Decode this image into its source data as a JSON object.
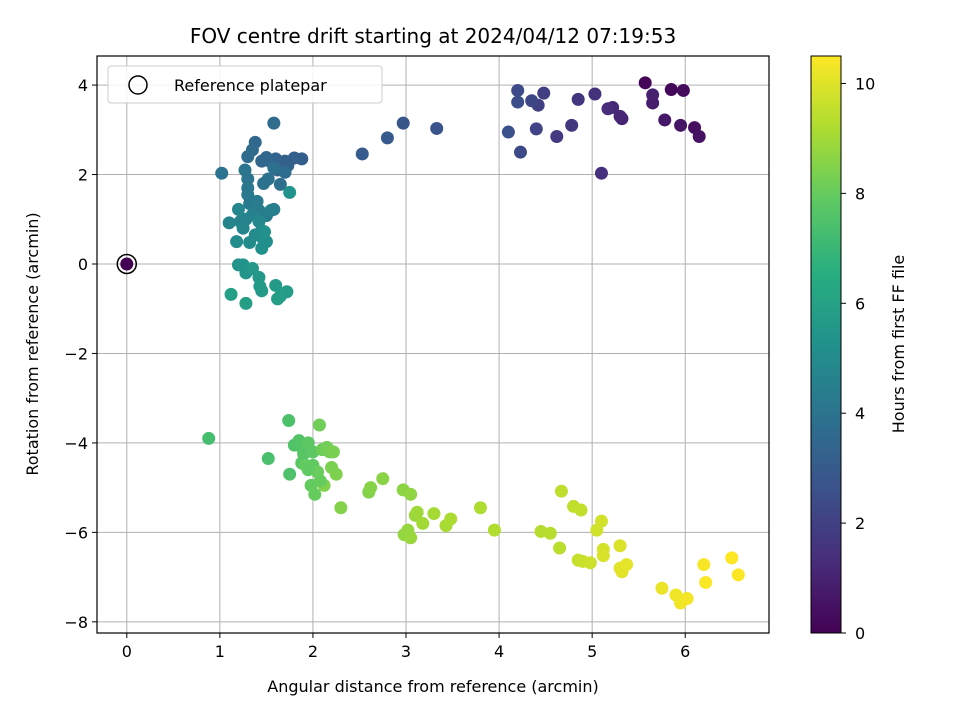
{
  "chart_data": {
    "type": "scatter",
    "title": "FOV centre drift starting at 2024/04/12 07:19:53",
    "xlabel": "Angular distance from reference (arcmin)",
    "ylabel": "Rotation from reference (arcmin)",
    "xlim": [
      -0.32,
      6.9
    ],
    "ylim": [
      -8.25,
      4.65
    ],
    "xticks": [
      0,
      1,
      2,
      3,
      4,
      5,
      6
    ],
    "yticks": [
      -8,
      -6,
      -4,
      -2,
      0,
      2,
      4
    ],
    "xtick_labels": [
      "0",
      "1",
      "2",
      "3",
      "4",
      "5",
      "6"
    ],
    "ytick_labels": [
      "−8",
      "−6",
      "−4",
      "−2",
      "0",
      "2",
      "4"
    ],
    "grid": true,
    "legend": {
      "placement": "top-left",
      "entries": [
        "Reference platepar"
      ]
    },
    "reference_point": {
      "x": 0,
      "y": 0,
      "hours": 0
    },
    "colorbar": {
      "label": "Hours from first FF file",
      "colormap": "viridis",
      "range": [
        0,
        10.5
      ],
      "ticks": [
        0,
        2,
        4,
        6,
        8,
        10
      ],
      "tick_labels": [
        "0",
        "2",
        "4",
        "6",
        "8",
        "10"
      ]
    },
    "points": [
      [
        5.57,
        4.05,
        0.1
      ],
      [
        5.85,
        3.9,
        0.2
      ],
      [
        5.98,
        3.88,
        0.3
      ],
      [
        6.1,
        3.05,
        0.4
      ],
      [
        6.15,
        2.85,
        0.5
      ],
      [
        5.95,
        3.1,
        0.6
      ],
      [
        5.78,
        3.22,
        0.7
      ],
      [
        5.65,
        3.6,
        0.8
      ],
      [
        5.65,
        3.78,
        0.9
      ],
      [
        5.32,
        3.25,
        1.0
      ],
      [
        5.3,
        3.3,
        1.1
      ],
      [
        5.22,
        3.5,
        1.2
      ],
      [
        5.17,
        3.47,
        1.3
      ],
      [
        5.1,
        2.03,
        1.4
      ],
      [
        5.03,
        3.8,
        1.5
      ],
      [
        4.85,
        3.68,
        1.6
      ],
      [
        4.78,
        3.1,
        1.7
      ],
      [
        4.62,
        2.85,
        1.8
      ],
      [
        4.48,
        3.82,
        1.9
      ],
      [
        4.42,
        3.55,
        2.0
      ],
      [
        4.4,
        3.02,
        2.1
      ],
      [
        4.35,
        3.65,
        2.2
      ],
      [
        4.23,
        2.5,
        2.3
      ],
      [
        4.2,
        3.88,
        2.4
      ],
      [
        4.2,
        3.62,
        2.5
      ],
      [
        4.1,
        2.95,
        2.6
      ],
      [
        3.33,
        3.03,
        2.7
      ],
      [
        2.97,
        3.15,
        2.8
      ],
      [
        2.8,
        2.82,
        2.9
      ],
      [
        2.53,
        2.46,
        3.0
      ],
      [
        1.88,
        2.35,
        3.1
      ],
      [
        1.8,
        2.37,
        3.15
      ],
      [
        1.73,
        2.2,
        3.2
      ],
      [
        1.7,
        2.3,
        3.25
      ],
      [
        1.62,
        2.1,
        3.3
      ],
      [
        1.6,
        2.35,
        3.35
      ],
      [
        1.55,
        2.28,
        3.4
      ],
      [
        1.5,
        2.38,
        3.45
      ],
      [
        1.45,
        2.3,
        3.5
      ],
      [
        1.38,
        2.72,
        3.55
      ],
      [
        1.35,
        2.55,
        3.6
      ],
      [
        1.3,
        2.4,
        3.65
      ],
      [
        1.58,
        3.15,
        3.7
      ],
      [
        1.7,
        2.05,
        3.75
      ],
      [
        1.65,
        1.78,
        3.8
      ],
      [
        1.58,
        2.15,
        3.85
      ],
      [
        1.52,
        1.9,
        3.9
      ],
      [
        1.47,
        1.8,
        3.95
      ],
      [
        1.02,
        2.03,
        4.0
      ],
      [
        1.27,
        2.1,
        4.05
      ],
      [
        1.3,
        1.9,
        4.1
      ],
      [
        1.3,
        1.7,
        4.15
      ],
      [
        1.3,
        1.55,
        4.2
      ],
      [
        1.32,
        1.35,
        4.25
      ],
      [
        1.4,
        1.4,
        4.3
      ],
      [
        1.42,
        1.2,
        4.35
      ],
      [
        1.5,
        1.08,
        4.4
      ],
      [
        1.58,
        1.22,
        4.45
      ],
      [
        1.55,
        1.2,
        4.5
      ],
      [
        1.35,
        1.1,
        4.55
      ],
      [
        1.28,
        1.0,
        4.6
      ],
      [
        1.22,
        0.95,
        4.65
      ],
      [
        1.1,
        0.92,
        4.7
      ],
      [
        1.25,
        0.8,
        4.75
      ],
      [
        1.2,
        1.22,
        4.8
      ],
      [
        1.42,
        0.95,
        4.85
      ],
      [
        1.45,
        0.75,
        4.9
      ],
      [
        1.38,
        0.65,
        4.95
      ],
      [
        1.32,
        0.48,
        5.0
      ],
      [
        1.18,
        0.5,
        5.05
      ],
      [
        1.45,
        0.6,
        5.1
      ],
      [
        1.5,
        0.5,
        5.15
      ],
      [
        1.45,
        0.35,
        5.2
      ],
      [
        1.48,
        0.72,
        5.25
      ],
      [
        1.75,
        1.6,
        5.3
      ],
      [
        1.2,
        -0.02,
        5.35
      ],
      [
        1.25,
        -0.02,
        5.4
      ],
      [
        1.28,
        -0.2,
        5.45
      ],
      [
        1.35,
        -0.1,
        5.5
      ],
      [
        1.42,
        -0.3,
        5.55
      ],
      [
        1.43,
        -0.5,
        5.6
      ],
      [
        1.45,
        -0.6,
        5.65
      ],
      [
        1.6,
        -0.48,
        5.7
      ],
      [
        1.72,
        -0.62,
        5.75
      ],
      [
        1.65,
        -0.72,
        5.8
      ],
      [
        1.62,
        -0.78,
        5.85
      ],
      [
        1.28,
        -0.88,
        5.9
      ],
      [
        1.12,
        -0.68,
        5.95
      ],
      [
        0.88,
        -3.9,
        7.3
      ],
      [
        1.52,
        -4.35,
        7.4
      ],
      [
        1.74,
        -3.5,
        7.45
      ],
      [
        1.75,
        -4.7,
        7.5
      ],
      [
        1.8,
        -4.05,
        7.55
      ],
      [
        1.85,
        -3.95,
        7.6
      ],
      [
        1.88,
        -4.1,
        7.65
      ],
      [
        1.9,
        -4.25,
        7.7
      ],
      [
        1.88,
        -4.45,
        7.75
      ],
      [
        1.95,
        -4.0,
        7.8
      ],
      [
        2.0,
        -4.2,
        7.85
      ],
      [
        2.0,
        -4.5,
        7.9
      ],
      [
        1.98,
        -4.95,
        7.95
      ],
      [
        2.02,
        -5.15,
        8.0
      ],
      [
        2.05,
        -4.65,
        8.05
      ],
      [
        2.1,
        -4.15,
        8.1
      ],
      [
        2.07,
        -3.6,
        8.15
      ],
      [
        2.15,
        -4.1,
        8.2
      ],
      [
        2.18,
        -4.2,
        8.25
      ],
      [
        2.22,
        -4.2,
        8.3
      ],
      [
        2.2,
        -4.55,
        8.35
      ],
      [
        2.25,
        -4.7,
        8.4
      ],
      [
        2.12,
        -4.95,
        8.45
      ],
      [
        2.3,
        -5.45,
        8.5
      ],
      [
        1.95,
        -4.6,
        7.9
      ],
      [
        1.92,
        -4.5,
        7.92
      ],
      [
        2.08,
        -4.85,
        8.0
      ],
      [
        2.6,
        -5.1,
        8.5
      ],
      [
        2.62,
        -5.0,
        8.55
      ],
      [
        2.75,
        -4.8,
        8.6
      ],
      [
        2.97,
        -5.05,
        8.65
      ],
      [
        3.05,
        -5.15,
        8.7
      ],
      [
        2.98,
        -6.05,
        8.75
      ],
      [
        3.02,
        -5.95,
        8.8
      ],
      [
        3.05,
        -6.12,
        8.85
      ],
      [
        3.1,
        -5.62,
        8.9
      ],
      [
        3.12,
        -5.55,
        8.95
      ],
      [
        3.18,
        -5.8,
        9.0
      ],
      [
        3.3,
        -5.58,
        9.05
      ],
      [
        3.43,
        -5.85,
        9.1
      ],
      [
        3.48,
        -5.7,
        9.15
      ],
      [
        3.8,
        -5.45,
        9.2
      ],
      [
        3.95,
        -5.95,
        9.25
      ],
      [
        4.45,
        -5.98,
        9.3
      ],
      [
        4.55,
        -6.02,
        9.35
      ],
      [
        4.65,
        -6.35,
        9.4
      ],
      [
        4.67,
        -5.08,
        9.45
      ],
      [
        4.8,
        -5.42,
        9.5
      ],
      [
        4.88,
        -5.5,
        9.55
      ],
      [
        4.85,
        -6.62,
        9.6
      ],
      [
        4.9,
        -6.65,
        9.65
      ],
      [
        4.98,
        -6.68,
        9.7
      ],
      [
        5.05,
        -5.95,
        9.75
      ],
      [
        5.1,
        -5.75,
        9.8
      ],
      [
        5.12,
        -6.38,
        9.85
      ],
      [
        5.12,
        -6.52,
        9.9
      ],
      [
        5.3,
        -6.3,
        9.95
      ],
      [
        5.3,
        -6.8,
        10.0
      ],
      [
        5.32,
        -6.88,
        10.05
      ],
      [
        5.37,
        -6.72,
        10.1
      ],
      [
        5.75,
        -7.25,
        10.2
      ],
      [
        5.9,
        -7.4,
        10.25
      ],
      [
        5.95,
        -7.58,
        10.3
      ],
      [
        6.02,
        -7.48,
        10.35
      ],
      [
        6.2,
        -6.72,
        10.4
      ],
      [
        6.22,
        -7.12,
        10.45
      ],
      [
        6.5,
        -6.57,
        10.5
      ],
      [
        6.57,
        -6.95,
        10.5
      ]
    ]
  }
}
